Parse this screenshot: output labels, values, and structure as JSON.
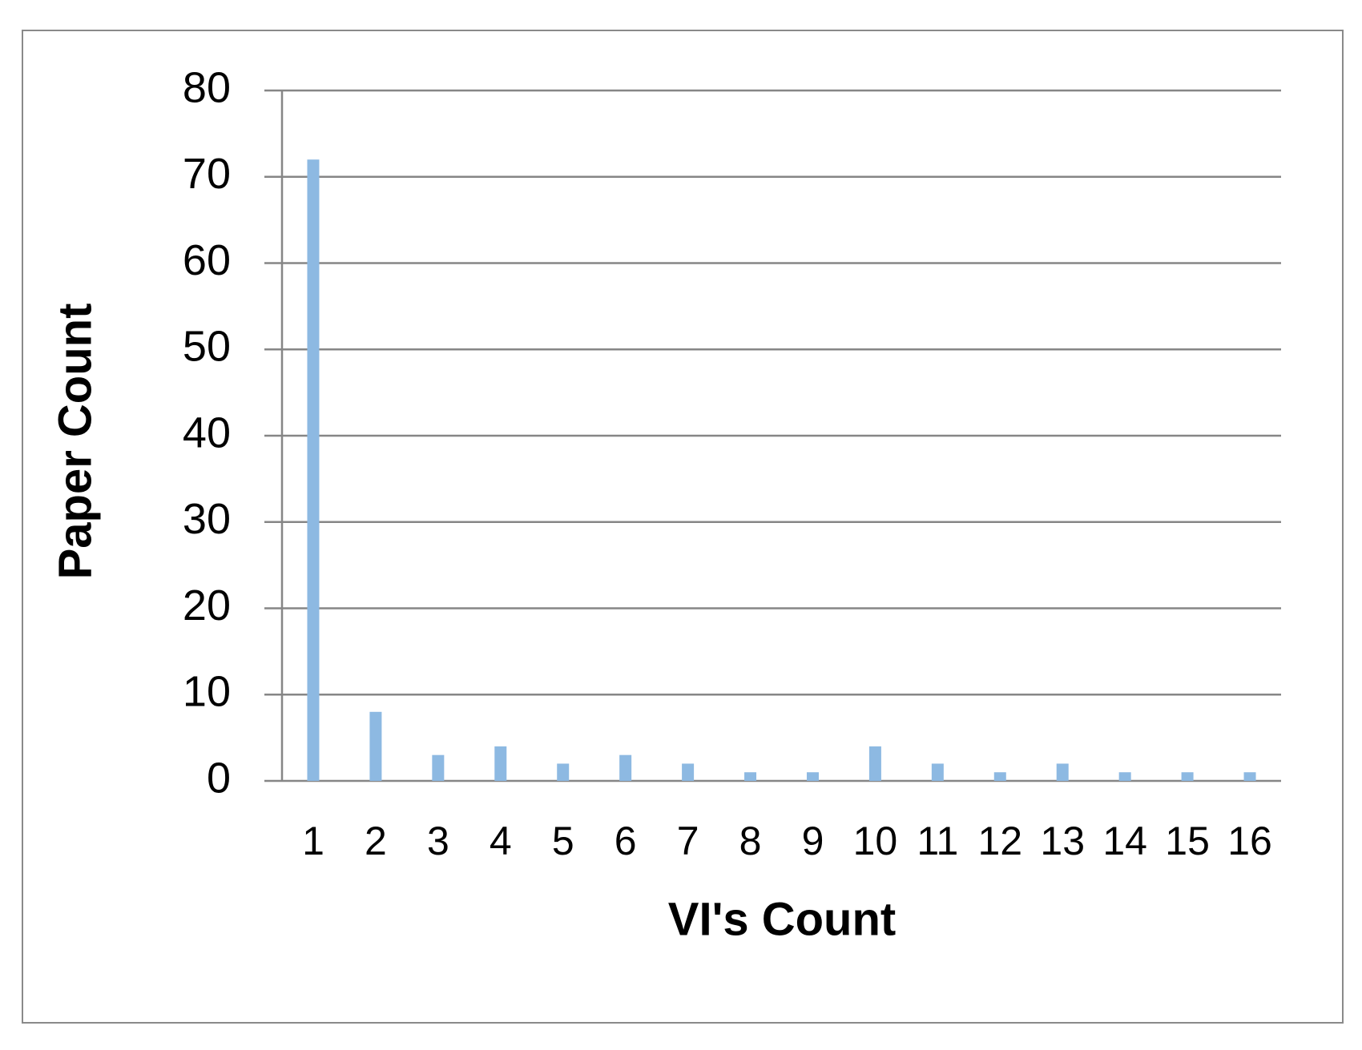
{
  "chart_data": {
    "type": "bar",
    "x_label": "VI's Count",
    "y_label": "Paper Count",
    "categories": [
      "1",
      "2",
      "3",
      "4",
      "5",
      "6",
      "7",
      "8",
      "9",
      "10",
      "11",
      "12",
      "13",
      "14",
      "15",
      "16"
    ],
    "values": [
      72,
      8,
      3,
      4,
      2,
      3,
      2,
      1,
      1,
      4,
      2,
      1,
      2,
      1,
      1,
      1
    ],
    "color": "#8db9e2",
    "ylim": [
      0,
      80
    ],
    "yticks": [
      0,
      10,
      20,
      30,
      40,
      50,
      60,
      70,
      80
    ],
    "grid": true
  }
}
